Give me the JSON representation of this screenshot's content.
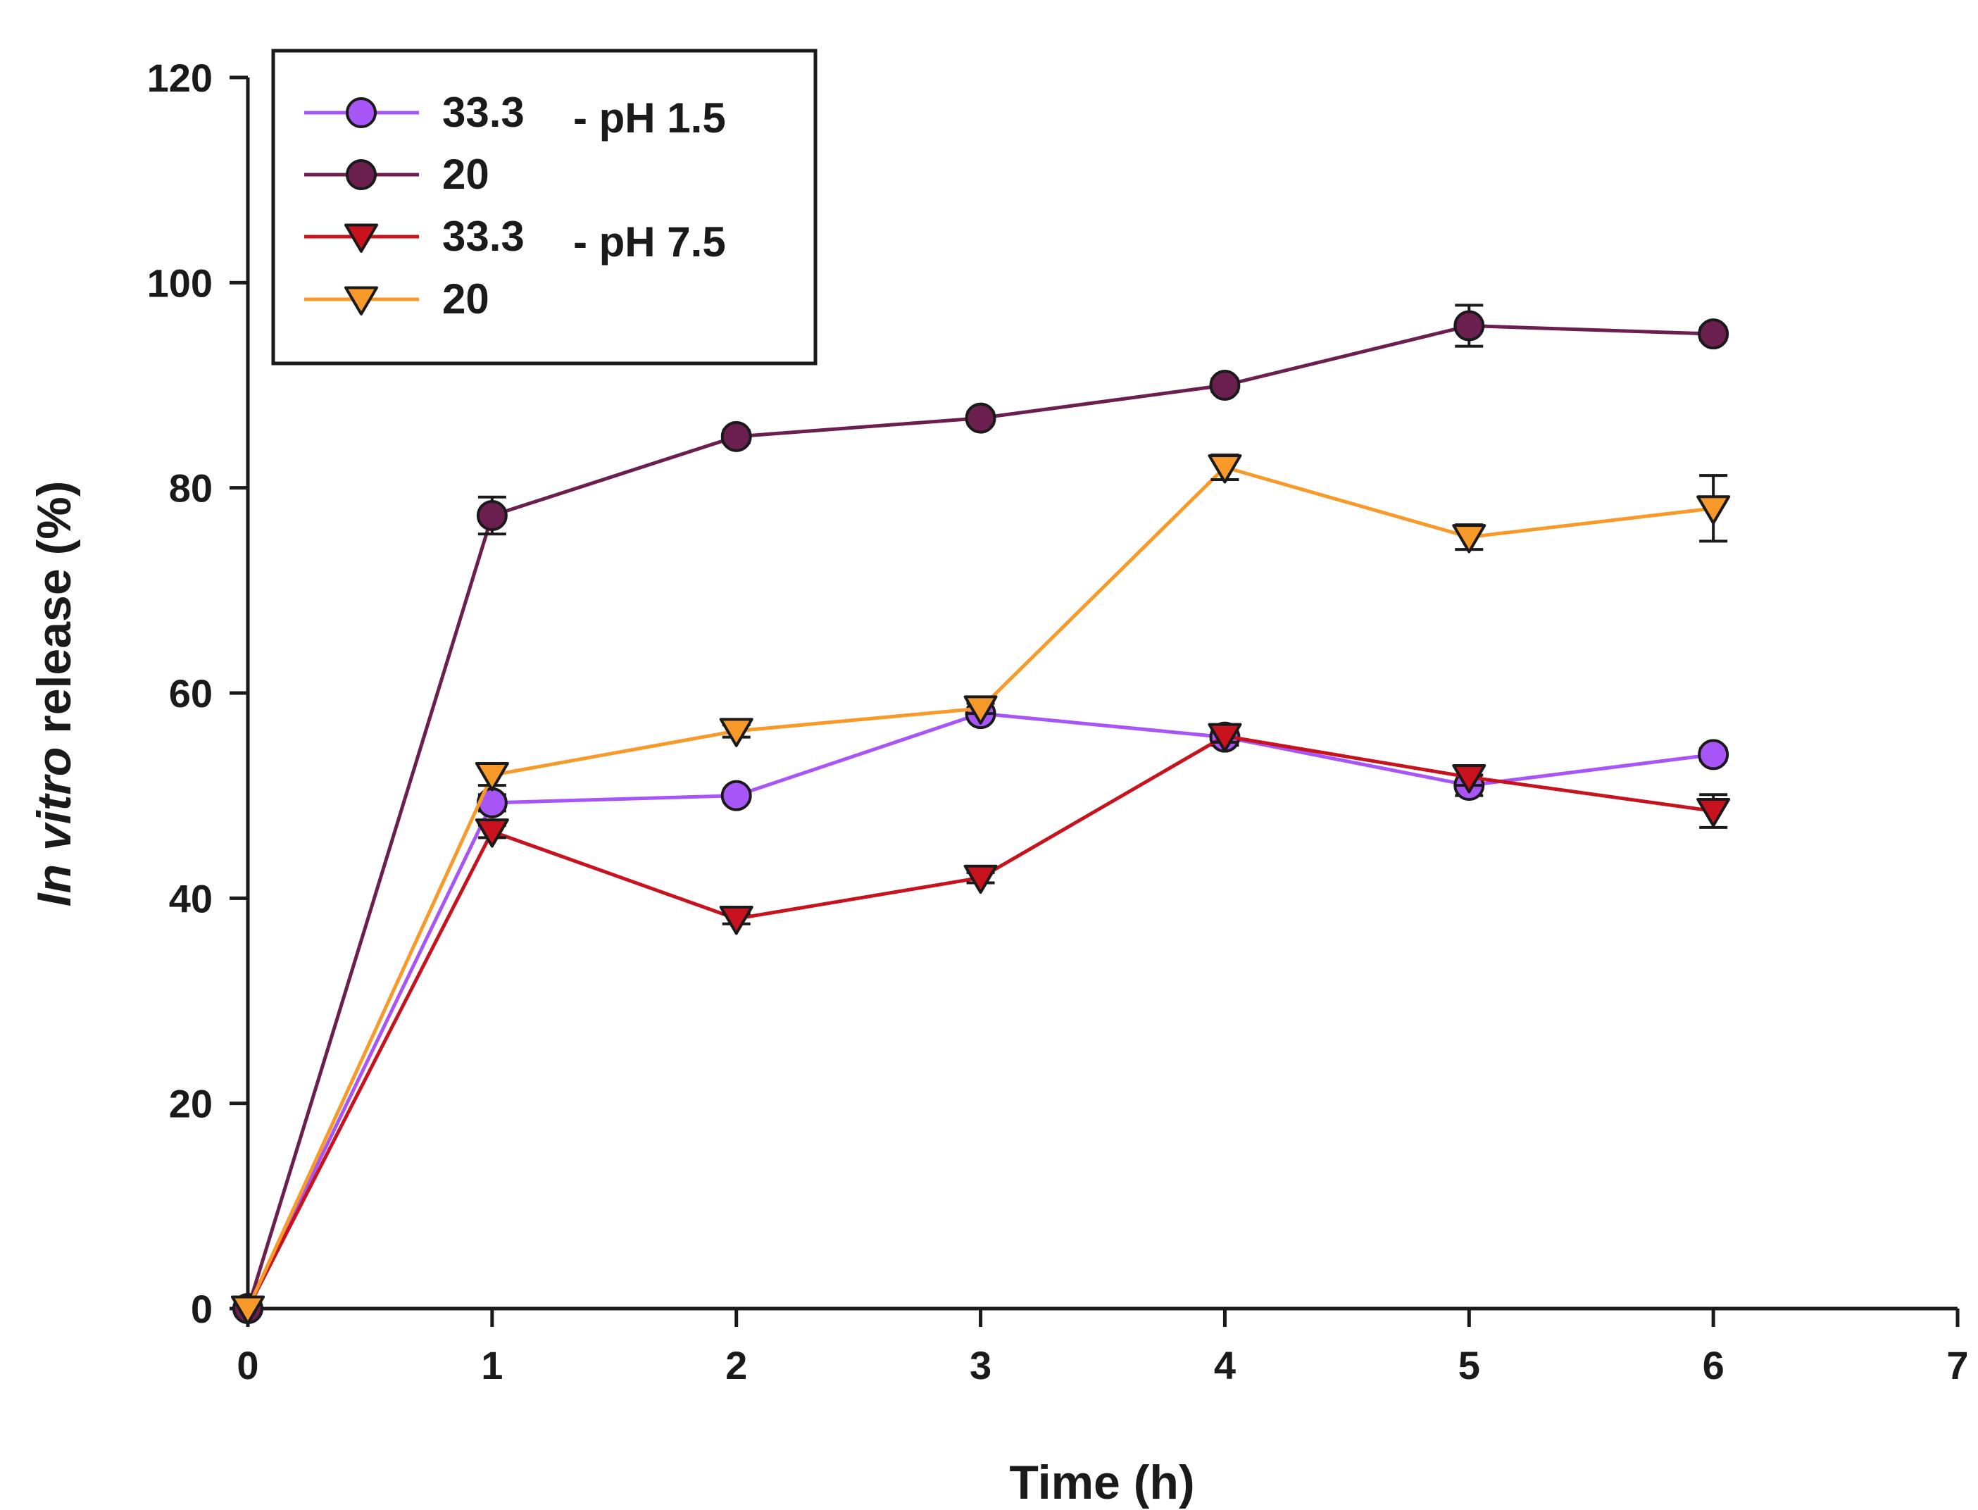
{
  "chart_data": {
    "type": "line",
    "title": "",
    "xlabel": "Time (h)",
    "ylabel": {
      "italic": "In vitro",
      "rest": " release (%)"
    },
    "xlim": [
      0,
      7
    ],
    "ylim": [
      0,
      120
    ],
    "xticks": [
      "0",
      "1",
      "2",
      "3",
      "4",
      "5",
      "6",
      "7"
    ],
    "yticks": [
      "0",
      "20",
      "40",
      "60",
      "80",
      "100",
      "120"
    ],
    "grid": false,
    "legend_position": "top-left",
    "legend_groups": [
      {
        "label": "- pH 1.5",
        "series": [
          0,
          1
        ]
      },
      {
        "label": "- pH 7.5",
        "series": [
          2,
          3
        ]
      }
    ],
    "x": [
      0,
      1,
      2,
      3,
      4,
      5,
      6
    ],
    "series": [
      {
        "name": "33.3",
        "group": "pH 1.5",
        "marker": "circle",
        "color": "#a855f7",
        "values": [
          0,
          49.3,
          50.0,
          58.0,
          55.7,
          51.0,
          54.0
        ],
        "errors": [
          0,
          0.8,
          0.5,
          0.5,
          0.8,
          1.0,
          0.6
        ]
      },
      {
        "name": "20",
        "group": "pH 1.5",
        "marker": "circle",
        "color": "#6b1f4f",
        "values": [
          0,
          77.3,
          85.0,
          86.8,
          90.0,
          95.8,
          95.0
        ],
        "errors": [
          0,
          1.8,
          0.6,
          0.6,
          0.6,
          2.0,
          0.6
        ]
      },
      {
        "name": "33.3",
        "group": "pH 7.5",
        "marker": "triangle-down",
        "color": "#c8131e",
        "values": [
          0,
          46.5,
          38.0,
          42.0,
          55.8,
          51.8,
          48.5
        ],
        "errors": [
          0,
          0.6,
          0.5,
          0.5,
          0.6,
          0.8,
          1.6
        ]
      },
      {
        "name": "20",
        "group": "pH 7.5",
        "marker": "triangle-down",
        "color": "#f79a2a",
        "values": [
          0,
          52.0,
          56.3,
          58.5,
          82.0,
          75.2,
          78.0
        ],
        "errors": [
          0,
          1.0,
          0.6,
          0.5,
          1.2,
          1.2,
          3.2
        ]
      }
    ]
  }
}
